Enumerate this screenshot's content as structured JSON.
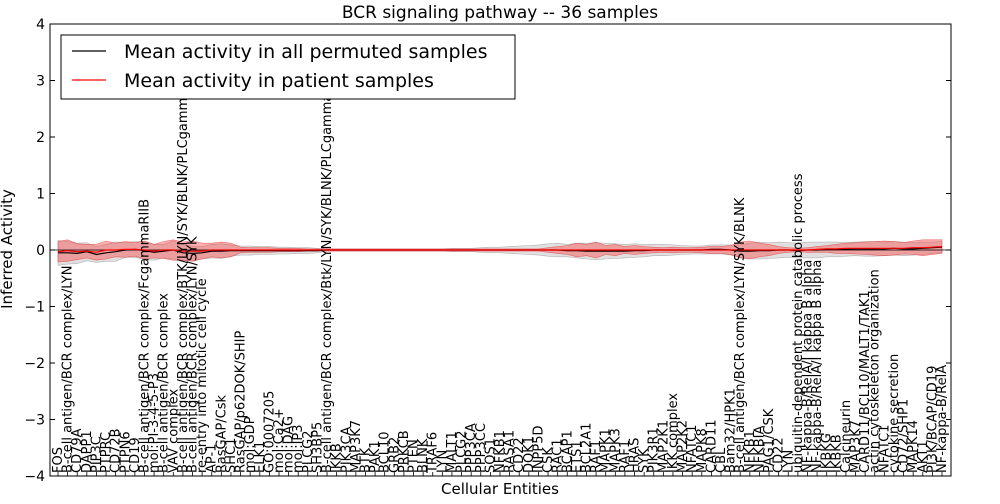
{
  "chart_data": {
    "type": "line",
    "title": "BCR signaling pathway -- 36 samples",
    "xlabel": "Cellular Entities",
    "ylabel": "Inferred Activity",
    "ylim": [
      -4,
      4
    ],
    "yticks": [
      -4,
      -3,
      -2,
      -1,
      0,
      1,
      2,
      3,
      4
    ],
    "ytick_labels": [
      "−4",
      "−3",
      "−2",
      "−1",
      "0",
      "1",
      "2",
      "3",
      "4"
    ],
    "grid": false,
    "legend_position": "top-left",
    "categories": [
      "FOS",
      "B-cell antigen/BCR complex/LYN",
      "CD79A",
      "DAPP1",
      "PIP3C",
      "PTPRC",
      "CD72B",
      "PTPN6",
      "CD19",
      "B-cell antigen/BCR complex/FcgammaRIIB",
      "mol:PI-3-4-5-P3",
      "B-cell antigen/BCR complex",
      "VAV complex",
      "B-cell antigen/BCR complex/BTK/LYN/SYK/BLNK/PLCgamma2",
      "B-cell antigen/BCR complex/LYN/SYK",
      "re-entry into mitotic cell cycle",
      "AP-1",
      "RasGAP/Csk",
      "SHC1",
      "RasGAP/p62DOK/SHIP",
      "mol:GDP",
      "ELK1",
      "GO:0007205",
      "mol:Ca2+",
      "mol:DAG",
      "mol:IP3",
      "PLCG2",
      "SH3BP5",
      "B-cell antigen/BCR complex/Btk/LYN/SYK/BLNK/PLCgamma2",
      "IKKB",
      "PIK3CA",
      "MAP3K7",
      "BTK",
      "PAK1",
      "BCL10",
      "GRB2",
      "PRKCB",
      "PTEN",
      "BLNK",
      "TRAF6",
      "LYN",
      "MALT1",
      "PLCG2",
      "PPP3CA",
      "PPP3CC",
      "SOS1",
      "NFKB1",
      "RASA1",
      "CD22",
      "DOK1",
      "INPP5D",
      "CSK",
      "RAC1",
      "BCAP1",
      "ETS1",
      "BCL2A1",
      "RAF1",
      "MAPK1",
      "MAPK3",
      "RAF1",
      "HRAS",
      "SYK",
      "PIK3R1",
      "MAP2K1",
      "IKK complex",
      "MAP2K2",
      "NFATC1",
      "MAPK8",
      "CARD11",
      "CBL",
      "Bam32/HPK1",
      "B-cell antigen/BCR complex/LYN/SYK/BLNK",
      "NFKB1",
      "NFKBIA",
      "PAG1/CSK",
      "CD22",
      "LYN",
      "ubiquitin-dependent protein catabolic process",
      "NF-kappa-B/RelA/I kappa B alpha",
      "NF-kappa-B/RelA/I kappa B alpha",
      "IKBKG",
      "IKBKB",
      "Calcineurin",
      "MAP3K7",
      "CARD11/BCL10/MALT1/TAK1",
      "actin cytoskeleton organization",
      "NFATC1",
      "cytokine secretion",
      "CD72/SHP1",
      "MAPK14",
      "AKT1",
      "PI3K/BCAP/CD19",
      "NF-kappa-B/RelA"
    ],
    "series": [
      {
        "name": "Mean activity in all permuted samples",
        "color": "#000000",
        "values": [
          -0.05,
          -0.05,
          -0.06,
          -0.03,
          -0.08,
          -0.05,
          -0.03,
          0.0,
          0.01,
          -0.01,
          -0.04,
          -0.02,
          0.0,
          -0.05,
          -0.06,
          -0.05,
          -0.02,
          -0.02,
          -0.01,
          -0.01,
          -0.01,
          -0.01,
          -0.01,
          -0.01,
          -0.01,
          -0.01,
          -0.01,
          -0.01,
          0.0,
          0.0,
          0.0,
          0.0,
          0.0,
          0.0,
          0.0,
          0.0,
          0.0,
          0.0,
          0.0,
          0.0,
          0.0,
          0.0,
          0.0,
          0.0,
          0.0,
          0.0,
          0.0,
          0.0,
          0.0,
          0.0,
          0.0,
          0.0,
          0.0,
          -0.01,
          -0.01,
          -0.02,
          -0.02,
          -0.02,
          -0.02,
          -0.02,
          -0.01,
          -0.01,
          0.0,
          0.0,
          0.0,
          0.0,
          0.0,
          0.0,
          0.01,
          0.01,
          0.0,
          -0.02,
          -0.02,
          -0.01,
          -0.01,
          0.0,
          0.0,
          -0.01,
          0.0,
          0.0,
          0.01,
          0.01,
          0.01,
          0.02,
          0.02,
          0.02,
          0.02,
          0.03,
          0.02,
          0.02,
          0.03,
          0.04,
          0.05
        ],
        "spread": [
          0.22,
          0.2,
          0.18,
          0.16,
          0.14,
          0.15,
          0.17,
          0.13,
          0.14,
          0.16,
          0.14,
          0.12,
          0.16,
          0.14,
          0.13,
          0.11,
          0.12,
          0.13,
          0.1,
          0.08,
          0.08,
          0.07,
          0.07,
          0.06,
          0.06,
          0.05,
          0.05,
          0.04,
          0.02,
          0.02,
          0.02,
          0.02,
          0.02,
          0.02,
          0.02,
          0.02,
          0.02,
          0.02,
          0.02,
          0.02,
          0.02,
          0.03,
          0.03,
          0.03,
          0.04,
          0.05,
          0.05,
          0.06,
          0.07,
          0.08,
          0.09,
          0.11,
          0.12,
          0.11,
          0.13,
          0.14,
          0.15,
          0.14,
          0.13,
          0.12,
          0.12,
          0.11,
          0.1,
          0.1,
          0.09,
          0.08,
          0.07,
          0.07,
          0.08,
          0.08,
          0.09,
          0.11,
          0.14,
          0.15,
          0.14,
          0.14,
          0.13,
          0.13,
          0.14,
          0.14,
          0.13,
          0.13,
          0.12,
          0.12,
          0.13,
          0.13,
          0.12,
          0.12,
          0.12,
          0.11,
          0.11,
          0.1,
          0.1
        ]
      },
      {
        "name": "Mean activity in patient samples",
        "color": "#ff0000",
        "values": [
          -0.03,
          -0.01,
          -0.03,
          -0.02,
          -0.04,
          0.0,
          0.0,
          0.01,
          0.01,
          0.0,
          -0.02,
          0.0,
          0.0,
          -0.02,
          -0.02,
          -0.02,
          0.0,
          0.0,
          0.0,
          0.0,
          0.0,
          0.0,
          0.0,
          0.0,
          0.0,
          0.0,
          0.0,
          0.0,
          0.0,
          0.0,
          0.0,
          0.0,
          0.0,
          0.0,
          0.0,
          0.0,
          0.0,
          0.0,
          0.0,
          0.0,
          0.0,
          0.0,
          0.0,
          0.0,
          0.0,
          0.0,
          0.0,
          0.0,
          0.0,
          0.0,
          0.0,
          0.0,
          0.0,
          0.0,
          0.0,
          0.0,
          0.0,
          0.0,
          0.0,
          0.0,
          0.0,
          0.0,
          0.0,
          0.0,
          0.0,
          0.0,
          0.0,
          0.0,
          0.0,
          0.0,
          0.0,
          0.0,
          0.0,
          0.0,
          0.0,
          0.0,
          0.0,
          0.0,
          0.0,
          0.01,
          0.02,
          0.02,
          0.03,
          0.03,
          0.03,
          0.03,
          0.03,
          0.03,
          0.03,
          0.04,
          0.04,
          0.05,
          0.06
        ],
        "spread": [
          0.18,
          0.19,
          0.14,
          0.12,
          0.14,
          0.16,
          0.12,
          0.14,
          0.12,
          0.16,
          0.12,
          0.15,
          0.18,
          0.16,
          0.18,
          0.14,
          0.12,
          0.14,
          0.12,
          0.05,
          0.04,
          0.04,
          0.04,
          0.03,
          0.03,
          0.03,
          0.02,
          0.02,
          0.02,
          0.02,
          0.02,
          0.02,
          0.02,
          0.02,
          0.02,
          0.02,
          0.02,
          0.02,
          0.02,
          0.02,
          0.02,
          0.02,
          0.02,
          0.02,
          0.02,
          0.02,
          0.02,
          0.02,
          0.02,
          0.02,
          0.02,
          0.04,
          0.06,
          0.08,
          0.12,
          0.1,
          0.14,
          0.08,
          0.1,
          0.06,
          0.08,
          0.06,
          0.05,
          0.04,
          0.05,
          0.04,
          0.04,
          0.05,
          0.06,
          0.06,
          0.08,
          0.14,
          0.16,
          0.12,
          0.1,
          0.06,
          0.04,
          0.03,
          0.04,
          0.05,
          0.06,
          0.08,
          0.09,
          0.1,
          0.11,
          0.12,
          0.13,
          0.12,
          0.1,
          0.12,
          0.14,
          0.13,
          0.12
        ]
      }
    ]
  }
}
